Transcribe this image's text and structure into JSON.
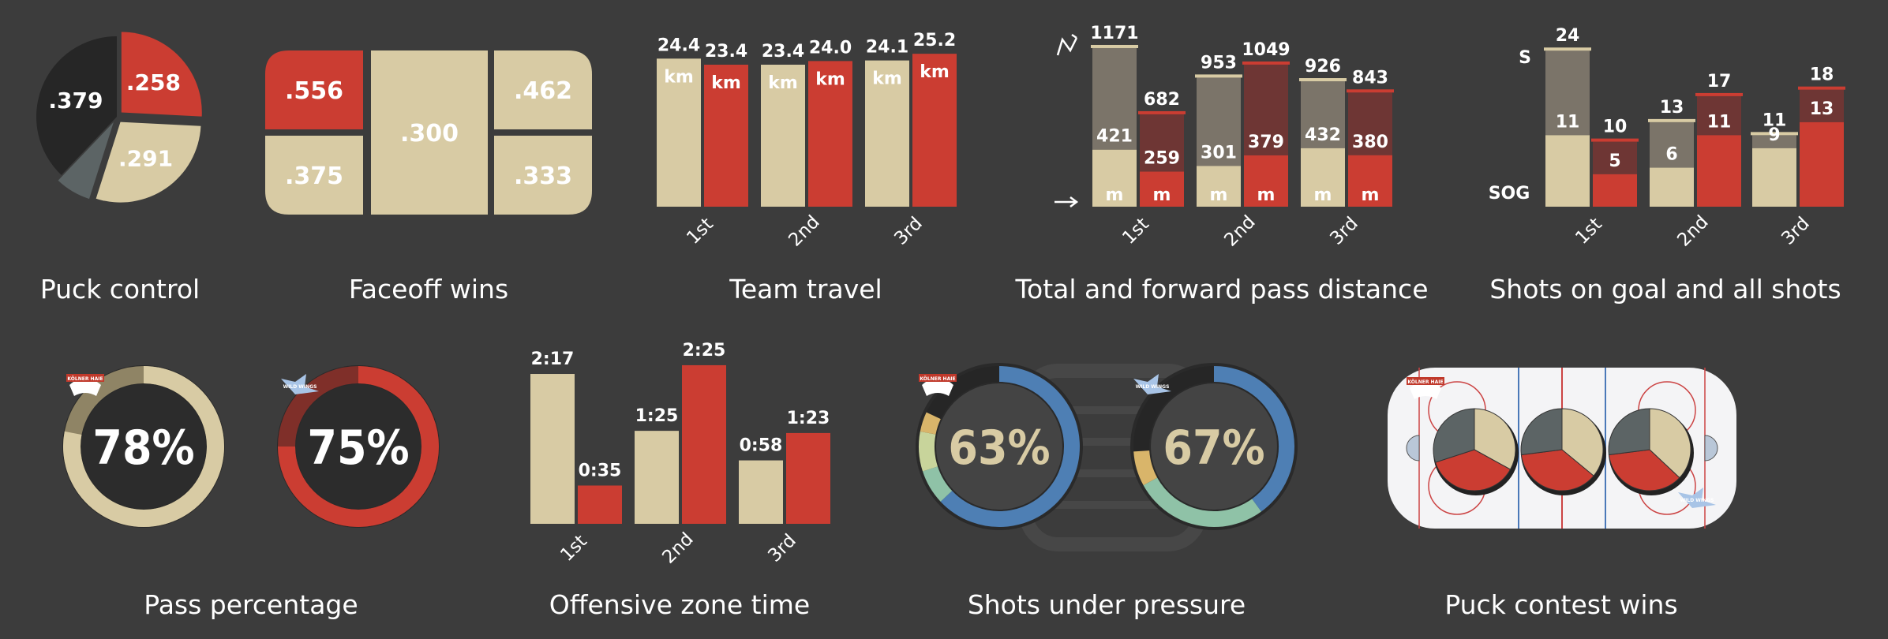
{
  "colors": {
    "bg": "#3c3c3c",
    "cream": "#d8cba4",
    "red": "#cb3d32",
    "dark": "#262626",
    "slate": "#5c6465",
    "taupe": "#7b7469",
    "maroon": "#6e3634",
    "blue": "#4e7fb4",
    "teal": "#8fc2a7",
    "lime": "#c8d49b",
    "gold": "#d9b56a"
  },
  "chart_data": [
    {
      "id": "puck",
      "type": "pie",
      "title": "Puck control",
      "slices": [
        {
          "value": 0.258,
          "label": ".258",
          "color": "red"
        },
        {
          "value": 0.291,
          "label": ".291",
          "color": "cream"
        },
        {
          "value": 0.072,
          "label": "",
          "color": "slate"
        },
        {
          "value": 0.379,
          "label": ".379",
          "color": "dark"
        }
      ]
    },
    {
      "id": "faceoff",
      "type": "table",
      "title": "Faceoff wins",
      "cells": [
        {
          "label": ".556",
          "color": "red"
        },
        {
          "label": ".375",
          "color": "cream"
        },
        {
          "label": ".300",
          "color": "cream"
        },
        {
          "label": ".462",
          "color": "cream"
        },
        {
          "label": ".333",
          "color": "cream"
        }
      ]
    },
    {
      "id": "travel",
      "type": "bar",
      "title": "Team travel",
      "categories": [
        "1st",
        "2nd",
        "3rd"
      ],
      "ylim": [
        0,
        26
      ],
      "unit": "km",
      "series": [
        {
          "values": [
            24.4,
            23.4,
            24.1
          ],
          "labels": [
            "24.4",
            "23.4",
            "24.1"
          ],
          "color": "cream"
        },
        {
          "values": [
            23.4,
            24.0,
            25.2
          ],
          "labels": [
            "23.4",
            "24.0",
            "25.2"
          ],
          "color": "red"
        }
      ]
    },
    {
      "id": "pass",
      "type": "bar",
      "title": "Total and forward pass distance",
      "categories": [
        "1st",
        "2nd",
        "3rd"
      ],
      "ylim": [
        0,
        1200
      ],
      "unit": "m",
      "series": [
        {
          "total": [
            1171,
            953,
            926
          ],
          "forward": [
            421,
            301,
            432
          ],
          "color": "cream",
          "fade": "taupe"
        },
        {
          "total": [
            682,
            1049,
            843
          ],
          "forward": [
            259,
            379,
            380
          ],
          "color": "red",
          "fade": "maroon"
        }
      ]
    },
    {
      "id": "shots",
      "type": "bar",
      "title": "Shots on goal and all shots",
      "categories": [
        "1st",
        "2nd",
        "3rd"
      ],
      "ylim": [
        0,
        25
      ],
      "axis_labels": [
        "S",
        "SOG"
      ],
      "series": [
        {
          "total": [
            24,
            13,
            11
          ],
          "sog": [
            11,
            6,
            9
          ],
          "color": "cream",
          "fade": "taupe"
        },
        {
          "total": [
            10,
            17,
            18
          ],
          "sog": [
            5,
            11,
            13
          ],
          "color": "red",
          "fade": "maroon"
        }
      ]
    },
    {
      "id": "passpct",
      "type": "pie",
      "title": "Pass percentage",
      "rings": [
        {
          "value": 0.78,
          "label": "78%",
          "color": "cream",
          "logo": "KÖLNER HAIE"
        },
        {
          "value": 0.75,
          "label": "75%",
          "color": "red",
          "logo": "WILD WINGS"
        }
      ]
    },
    {
      "id": "ozone",
      "type": "bar",
      "title": "Offensive zone time",
      "categories": [
        "1st",
        "2nd",
        "3rd"
      ],
      "ylim": [
        0,
        150
      ],
      "series": [
        {
          "seconds": [
            137,
            85,
            58
          ],
          "labels": [
            "2:17",
            "1:25",
            "0:58"
          ],
          "color": "cream"
        },
        {
          "seconds": [
            35,
            145,
            83
          ],
          "labels": [
            "0:35",
            "2:25",
            "1:23"
          ],
          "color": "red"
        }
      ]
    },
    {
      "id": "pressure",
      "type": "pie",
      "title": "Shots under pressure",
      "rings": [
        {
          "label": "63%",
          "logo": "KÖLNER HAIE",
          "segments": [
            {
              "value": 0.63,
              "color": "blue"
            },
            {
              "value": 0.07,
              "color": "teal"
            },
            {
              "value": 0.08,
              "color": "lime"
            },
            {
              "value": 0.04,
              "color": "gold"
            }
          ]
        },
        {
          "label": "67%",
          "logo": "WILD WINGS",
          "segments": [
            {
              "value": 0.4,
              "color": "blue"
            },
            {
              "value": 0.27,
              "color": "teal"
            },
            {
              "value": 0.07,
              "color": "gold"
            }
          ]
        }
      ]
    },
    {
      "id": "contest",
      "type": "pie",
      "title": "Puck contest wins",
      "logos": [
        "KÖLNER HAIE",
        "WILD WINGS"
      ],
      "pies": [
        [
          {
            "value": 0.33,
            "color": "cream"
          },
          {
            "value": 0.37,
            "color": "red"
          },
          {
            "value": 0.3,
            "color": "slate"
          }
        ],
        [
          {
            "value": 0.36,
            "color": "cream"
          },
          {
            "value": 0.37,
            "color": "red"
          },
          {
            "value": 0.27,
            "color": "slate"
          }
        ],
        [
          {
            "value": 0.37,
            "color": "cream"
          },
          {
            "value": 0.36,
            "color": "red"
          },
          {
            "value": 0.27,
            "color": "slate"
          }
        ]
      ]
    }
  ]
}
